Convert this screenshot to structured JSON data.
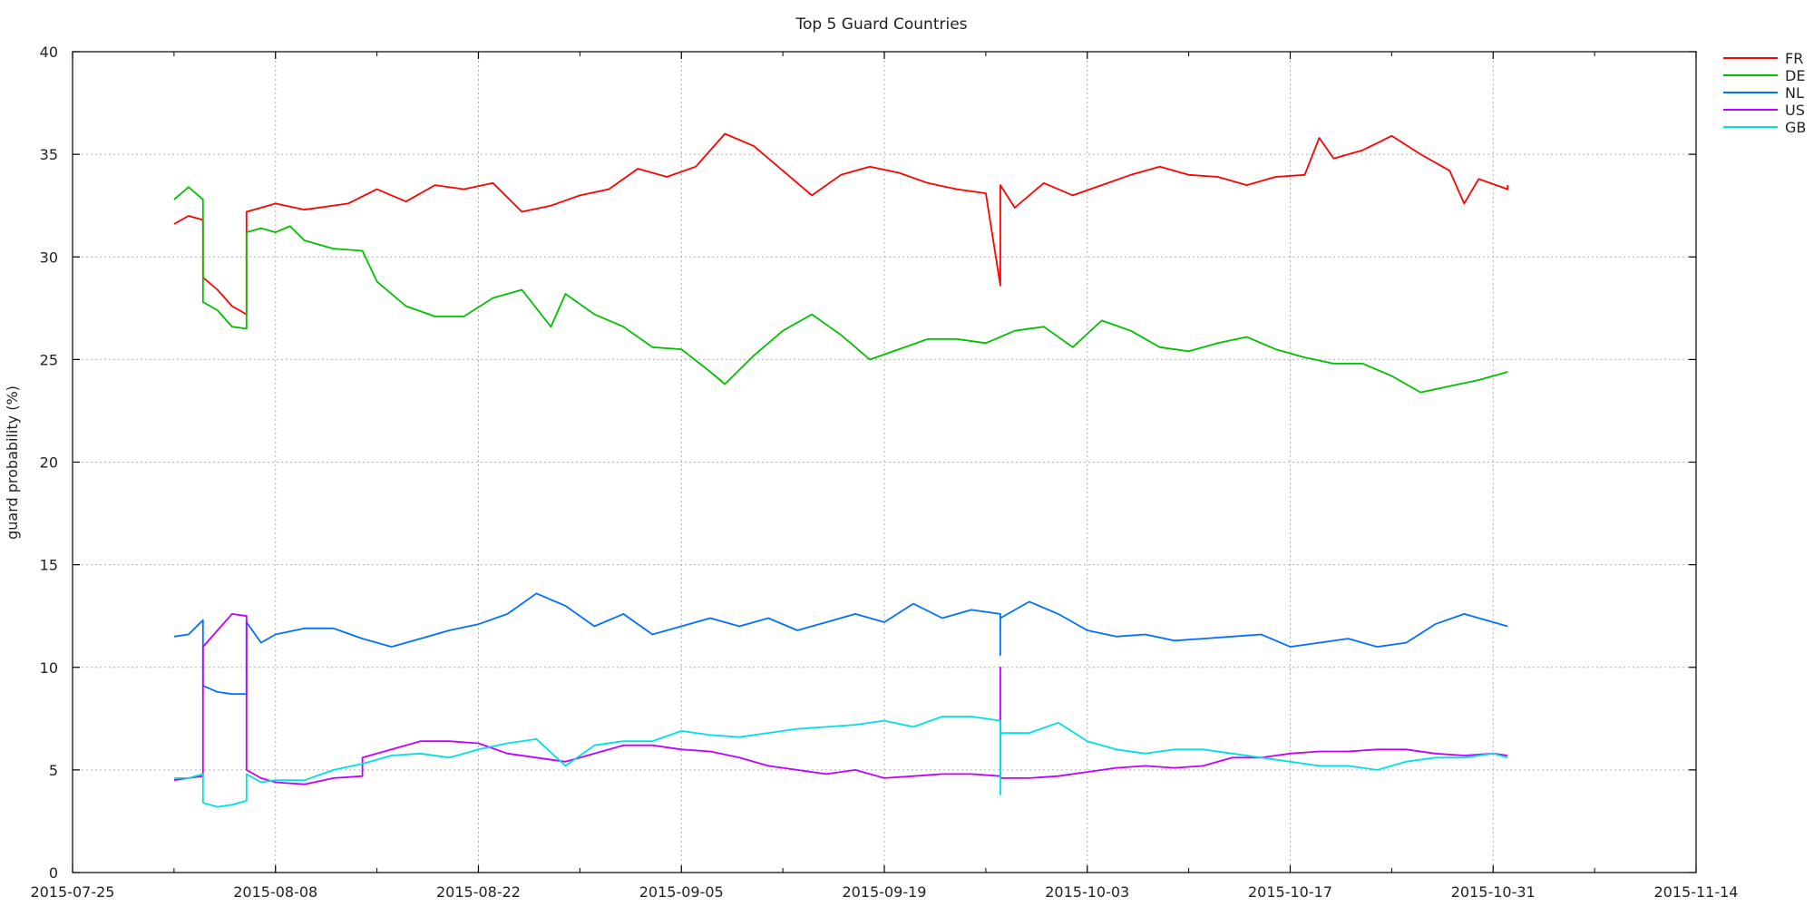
{
  "chart_data": {
    "type": "line",
    "title": "Top 5 Guard Countries",
    "xlabel": "",
    "ylabel": "guard probability (%)",
    "x_type": "date",
    "xlim": [
      "2015-07-25",
      "2015-11-14"
    ],
    "ylim": [
      0,
      40
    ],
    "x_ticks": [
      "2015-07-25",
      "2015-08-08",
      "2015-08-22",
      "2015-09-05",
      "2015-09-19",
      "2015-10-03",
      "2015-10-17",
      "2015-10-31",
      "2015-11-14"
    ],
    "y_ticks": [
      0,
      5,
      10,
      15,
      20,
      25,
      30,
      35,
      40
    ],
    "grid": true,
    "legend_position": "top-right outside",
    "series": [
      {
        "name": "FR",
        "color": "#ff0000",
        "points": [
          [
            "2015-08-01",
            31.6
          ],
          [
            "2015-08-02",
            32.0
          ],
          [
            "2015-08-03",
            31.8
          ],
          [
            "2015-08-03",
            29.0
          ],
          [
            "2015-08-04",
            28.4
          ],
          [
            "2015-08-05",
            27.6
          ],
          [
            "2015-08-06",
            27.2
          ],
          [
            "2015-08-06",
            32.2
          ],
          [
            "2015-08-07",
            32.4
          ],
          [
            "2015-08-08",
            32.6
          ],
          [
            "2015-08-10",
            32.3
          ],
          [
            "2015-08-13",
            32.6
          ],
          [
            "2015-08-15",
            33.3
          ],
          [
            "2015-08-17",
            32.7
          ],
          [
            "2015-08-19",
            33.5
          ],
          [
            "2015-08-21",
            33.3
          ],
          [
            "2015-08-23",
            33.6
          ],
          [
            "2015-08-25",
            32.2
          ],
          [
            "2015-08-27",
            32.5
          ],
          [
            "2015-08-29",
            33.0
          ],
          [
            "2015-08-31",
            33.3
          ],
          [
            "2015-09-02",
            34.3
          ],
          [
            "2015-09-04",
            33.9
          ],
          [
            "2015-09-06",
            34.4
          ],
          [
            "2015-09-08",
            36.0
          ],
          [
            "2015-09-10",
            35.4
          ],
          [
            "2015-09-12",
            34.2
          ],
          [
            "2015-09-14",
            33.0
          ],
          [
            "2015-09-16",
            34.0
          ],
          [
            "2015-09-18",
            34.4
          ],
          [
            "2015-09-20",
            34.1
          ],
          [
            "2015-09-22",
            33.6
          ],
          [
            "2015-09-24",
            33.3
          ],
          [
            "2015-09-26",
            33.1
          ],
          [
            "2015-09-27",
            28.6
          ],
          [
            "2015-09-27",
            33.5
          ],
          [
            "2015-09-28",
            32.4
          ],
          [
            "2015-09-30",
            33.6
          ],
          [
            "2015-10-02",
            33.0
          ],
          [
            "2015-10-04",
            33.5
          ],
          [
            "2015-10-06",
            34.0
          ],
          [
            "2015-10-08",
            34.4
          ],
          [
            "2015-10-10",
            34.0
          ],
          [
            "2015-10-12",
            33.9
          ],
          [
            "2015-10-14",
            33.5
          ],
          [
            "2015-10-16",
            33.9
          ],
          [
            "2015-10-18",
            34.0
          ],
          [
            "2015-10-19",
            35.8
          ],
          [
            "2015-10-20",
            34.8
          ],
          [
            "2015-10-22",
            35.2
          ],
          [
            "2015-10-24",
            35.9
          ],
          [
            "2015-10-26",
            35.0
          ],
          [
            "2015-10-28",
            34.2
          ],
          [
            "2015-10-29",
            32.6
          ],
          [
            "2015-10-30",
            33.8
          ],
          [
            "2015-11-01",
            33.3
          ],
          [
            "2015-11-01",
            33.5
          ]
        ]
      },
      {
        "name": "DE",
        "color": "#00c000",
        "points": [
          [
            "2015-08-01",
            32.8
          ],
          [
            "2015-08-02",
            33.4
          ],
          [
            "2015-08-03",
            32.8
          ],
          [
            "2015-08-03",
            27.8
          ],
          [
            "2015-08-04",
            27.4
          ],
          [
            "2015-08-05",
            26.6
          ],
          [
            "2015-08-06",
            26.5
          ],
          [
            "2015-08-06",
            31.2
          ],
          [
            "2015-08-07",
            31.4
          ],
          [
            "2015-08-08",
            31.2
          ],
          [
            "2015-08-09",
            31.5
          ],
          [
            "2015-08-10",
            30.8
          ],
          [
            "2015-08-12",
            30.4
          ],
          [
            "2015-08-14",
            30.3
          ],
          [
            "2015-08-15",
            28.8
          ],
          [
            "2015-08-17",
            27.6
          ],
          [
            "2015-08-19",
            27.1
          ],
          [
            "2015-08-21",
            27.1
          ],
          [
            "2015-08-23",
            28.0
          ],
          [
            "2015-08-25",
            28.4
          ],
          [
            "2015-08-27",
            26.6
          ],
          [
            "2015-08-28",
            28.2
          ],
          [
            "2015-08-30",
            27.2
          ],
          [
            "2015-09-01",
            26.6
          ],
          [
            "2015-09-03",
            25.6
          ],
          [
            "2015-09-05",
            25.5
          ],
          [
            "2015-09-07",
            24.4
          ],
          [
            "2015-09-08",
            23.8
          ],
          [
            "2015-09-10",
            25.2
          ],
          [
            "2015-09-12",
            26.4
          ],
          [
            "2015-09-14",
            27.2
          ],
          [
            "2015-09-16",
            26.2
          ],
          [
            "2015-09-18",
            25.0
          ],
          [
            "2015-09-20",
            25.5
          ],
          [
            "2015-09-22",
            26.0
          ],
          [
            "2015-09-24",
            26.0
          ],
          [
            "2015-09-26",
            25.8
          ],
          [
            "2015-09-28",
            26.4
          ],
          [
            "2015-09-30",
            26.6
          ],
          [
            "2015-10-02",
            25.6
          ],
          [
            "2015-10-04",
            26.9
          ],
          [
            "2015-10-06",
            26.4
          ],
          [
            "2015-10-08",
            25.6
          ],
          [
            "2015-10-10",
            25.4
          ],
          [
            "2015-10-12",
            25.8
          ],
          [
            "2015-10-14",
            26.1
          ],
          [
            "2015-10-16",
            25.5
          ],
          [
            "2015-10-18",
            25.1
          ],
          [
            "2015-10-20",
            24.8
          ],
          [
            "2015-10-22",
            24.8
          ],
          [
            "2015-10-24",
            24.2
          ],
          [
            "2015-10-26",
            23.4
          ],
          [
            "2015-10-28",
            23.7
          ],
          [
            "2015-10-30",
            24.0
          ],
          [
            "2015-11-01",
            24.4
          ]
        ]
      },
      {
        "name": "NL",
        "color": "#0070ff",
        "points": [
          [
            "2015-08-01",
            11.5
          ],
          [
            "2015-08-02",
            11.6
          ],
          [
            "2015-08-03",
            12.3
          ],
          [
            "2015-08-03",
            9.1
          ],
          [
            "2015-08-04",
            8.8
          ],
          [
            "2015-08-05",
            8.7
          ],
          [
            "2015-08-06",
            8.7
          ],
          [
            "2015-08-06",
            12.2
          ],
          [
            "2015-08-07",
            11.2
          ],
          [
            "2015-08-08",
            11.6
          ],
          [
            "2015-08-10",
            11.9
          ],
          [
            "2015-08-12",
            11.9
          ],
          [
            "2015-08-14",
            11.4
          ],
          [
            "2015-08-16",
            11.0
          ],
          [
            "2015-08-18",
            11.4
          ],
          [
            "2015-08-20",
            11.8
          ],
          [
            "2015-08-22",
            12.1
          ],
          [
            "2015-08-24",
            12.6
          ],
          [
            "2015-08-26",
            13.6
          ],
          [
            "2015-08-28",
            13.0
          ],
          [
            "2015-08-30",
            12.0
          ],
          [
            "2015-09-01",
            12.6
          ],
          [
            "2015-09-03",
            11.6
          ],
          [
            "2015-09-05",
            12.0
          ],
          [
            "2015-09-07",
            12.4
          ],
          [
            "2015-09-09",
            12.0
          ],
          [
            "2015-09-11",
            12.4
          ],
          [
            "2015-09-13",
            11.8
          ],
          [
            "2015-09-15",
            12.2
          ],
          [
            "2015-09-17",
            12.6
          ],
          [
            "2015-09-19",
            12.2
          ],
          [
            "2015-09-21",
            13.1
          ],
          [
            "2015-09-23",
            12.4
          ],
          [
            "2015-09-25",
            12.8
          ],
          [
            "2015-09-27",
            12.6
          ],
          [
            "2015-09-27",
            10.6
          ],
          [
            "2015-09-27",
            12.4
          ],
          [
            "2015-09-29",
            13.2
          ],
          [
            "2015-10-01",
            12.6
          ],
          [
            "2015-10-03",
            11.8
          ],
          [
            "2015-10-05",
            11.5
          ],
          [
            "2015-10-07",
            11.6
          ],
          [
            "2015-10-09",
            11.3
          ],
          [
            "2015-10-11",
            11.4
          ],
          [
            "2015-10-13",
            11.5
          ],
          [
            "2015-10-15",
            11.6
          ],
          [
            "2015-10-17",
            11.0
          ],
          [
            "2015-10-19",
            11.2
          ],
          [
            "2015-10-21",
            11.4
          ],
          [
            "2015-10-23",
            11.0
          ],
          [
            "2015-10-25",
            11.2
          ],
          [
            "2015-10-27",
            12.1
          ],
          [
            "2015-10-29",
            12.6
          ],
          [
            "2015-10-31",
            12.2
          ],
          [
            "2015-11-01",
            12.0
          ]
        ]
      },
      {
        "name": "US",
        "color": "#c000ff",
        "points": [
          [
            "2015-08-01",
            4.5
          ],
          [
            "2015-08-02",
            4.6
          ],
          [
            "2015-08-03",
            4.7
          ],
          [
            "2015-08-03",
            11.0
          ],
          [
            "2015-08-04",
            11.8
          ],
          [
            "2015-08-05",
            12.6
          ],
          [
            "2015-08-06",
            12.5
          ],
          [
            "2015-08-06",
            5.0
          ],
          [
            "2015-08-07",
            4.6
          ],
          [
            "2015-08-08",
            4.4
          ],
          [
            "2015-08-10",
            4.3
          ],
          [
            "2015-08-12",
            4.6
          ],
          [
            "2015-08-14",
            4.7
          ],
          [
            "2015-08-14",
            5.6
          ],
          [
            "2015-08-16",
            6.0
          ],
          [
            "2015-08-18",
            6.4
          ],
          [
            "2015-08-20",
            6.4
          ],
          [
            "2015-08-22",
            6.3
          ],
          [
            "2015-08-24",
            5.8
          ],
          [
            "2015-08-26",
            5.6
          ],
          [
            "2015-08-28",
            5.4
          ],
          [
            "2015-08-30",
            5.8
          ],
          [
            "2015-09-01",
            6.2
          ],
          [
            "2015-09-03",
            6.2
          ],
          [
            "2015-09-05",
            6.0
          ],
          [
            "2015-09-07",
            5.9
          ],
          [
            "2015-09-09",
            5.6
          ],
          [
            "2015-09-11",
            5.2
          ],
          [
            "2015-09-13",
            5.0
          ],
          [
            "2015-09-15",
            4.8
          ],
          [
            "2015-09-17",
            5.0
          ],
          [
            "2015-09-19",
            4.6
          ],
          [
            "2015-09-21",
            4.7
          ],
          [
            "2015-09-23",
            4.8
          ],
          [
            "2015-09-25",
            4.8
          ],
          [
            "2015-09-27",
            4.7
          ],
          [
            "2015-09-27",
            10.0
          ],
          [
            "2015-09-27",
            4.6
          ],
          [
            "2015-09-29",
            4.6
          ],
          [
            "2015-10-01",
            4.7
          ],
          [
            "2015-10-03",
            4.9
          ],
          [
            "2015-10-05",
            5.1
          ],
          [
            "2015-10-07",
            5.2
          ],
          [
            "2015-10-09",
            5.1
          ],
          [
            "2015-10-11",
            5.2
          ],
          [
            "2015-10-13",
            5.6
          ],
          [
            "2015-10-15",
            5.6
          ],
          [
            "2015-10-17",
            5.8
          ],
          [
            "2015-10-19",
            5.9
          ],
          [
            "2015-10-21",
            5.9
          ],
          [
            "2015-10-23",
            6.0
          ],
          [
            "2015-10-25",
            6.0
          ],
          [
            "2015-10-27",
            5.8
          ],
          [
            "2015-10-29",
            5.7
          ],
          [
            "2015-10-31",
            5.8
          ],
          [
            "2015-11-01",
            5.7
          ]
        ]
      },
      {
        "name": "GB",
        "color": "#00e0e0",
        "points": [
          [
            "2015-08-01",
            4.6
          ],
          [
            "2015-08-02",
            4.6
          ],
          [
            "2015-08-03",
            4.8
          ],
          [
            "2015-08-03",
            3.4
          ],
          [
            "2015-08-04",
            3.2
          ],
          [
            "2015-08-05",
            3.3
          ],
          [
            "2015-08-06",
            3.5
          ],
          [
            "2015-08-06",
            4.8
          ],
          [
            "2015-08-07",
            4.4
          ],
          [
            "2015-08-08",
            4.5
          ],
          [
            "2015-08-10",
            4.5
          ],
          [
            "2015-08-12",
            5.0
          ],
          [
            "2015-08-14",
            5.3
          ],
          [
            "2015-08-16",
            5.7
          ],
          [
            "2015-08-18",
            5.8
          ],
          [
            "2015-08-20",
            5.6
          ],
          [
            "2015-08-22",
            6.0
          ],
          [
            "2015-08-24",
            6.3
          ],
          [
            "2015-08-26",
            6.5
          ],
          [
            "2015-08-28",
            5.2
          ],
          [
            "2015-08-30",
            6.2
          ],
          [
            "2015-09-01",
            6.4
          ],
          [
            "2015-09-03",
            6.4
          ],
          [
            "2015-09-05",
            6.9
          ],
          [
            "2015-09-07",
            6.7
          ],
          [
            "2015-09-09",
            6.6
          ],
          [
            "2015-09-11",
            6.8
          ],
          [
            "2015-09-13",
            7.0
          ],
          [
            "2015-09-15",
            7.1
          ],
          [
            "2015-09-17",
            7.2
          ],
          [
            "2015-09-19",
            7.4
          ],
          [
            "2015-09-21",
            7.1
          ],
          [
            "2015-09-23",
            7.6
          ],
          [
            "2015-09-25",
            7.6
          ],
          [
            "2015-09-27",
            7.4
          ],
          [
            "2015-09-27",
            3.8
          ],
          [
            "2015-09-27",
            6.8
          ],
          [
            "2015-09-29",
            6.8
          ],
          [
            "2015-10-01",
            7.3
          ],
          [
            "2015-10-03",
            6.4
          ],
          [
            "2015-10-05",
            6.0
          ],
          [
            "2015-10-07",
            5.8
          ],
          [
            "2015-10-09",
            6.0
          ],
          [
            "2015-10-11",
            6.0
          ],
          [
            "2015-10-13",
            5.8
          ],
          [
            "2015-10-15",
            5.6
          ],
          [
            "2015-10-17",
            5.4
          ],
          [
            "2015-10-19",
            5.2
          ],
          [
            "2015-10-21",
            5.2
          ],
          [
            "2015-10-23",
            5.0
          ],
          [
            "2015-10-25",
            5.4
          ],
          [
            "2015-10-27",
            5.6
          ],
          [
            "2015-10-29",
            5.6
          ],
          [
            "2015-10-31",
            5.8
          ],
          [
            "2015-11-01",
            5.6
          ]
        ]
      }
    ]
  }
}
